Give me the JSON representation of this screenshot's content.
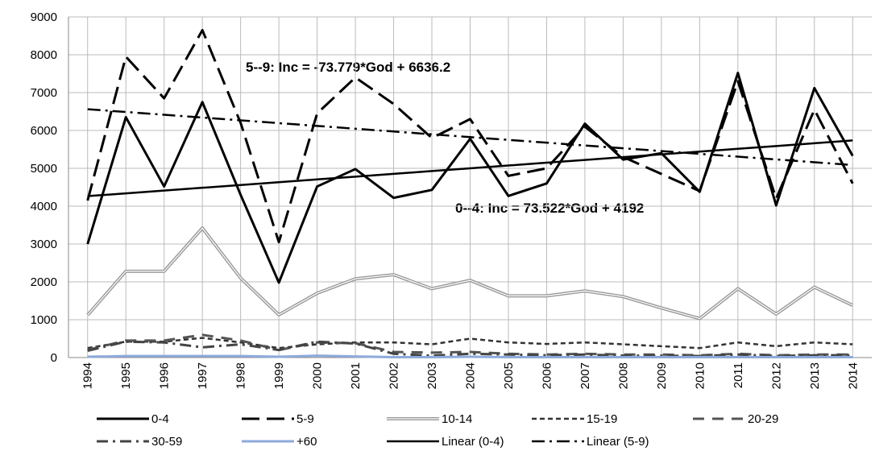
{
  "chart_data": {
    "type": "line",
    "categories": [
      "1994",
      "1995",
      "1996",
      "1997",
      "1998",
      "1999",
      "2000",
      "2001",
      "2002",
      "2003",
      "2004",
      "2005",
      "2006",
      "2007",
      "2008",
      "2009",
      "2010",
      "2011",
      "2012",
      "2013",
      "2014"
    ],
    "series": [
      {
        "name": "0-4",
        "color": "#000000",
        "values": [
          3000,
          6350,
          4520,
          6750,
          4300,
          1980,
          4520,
          4980,
          4220,
          4430,
          5780,
          4270,
          4600,
          6180,
          5230,
          5400,
          4380,
          7520,
          4020,
          7120,
          5330
        ]
      },
      {
        "name": "5-9",
        "color": "#000000",
        "values": [
          4150,
          7950,
          6850,
          8650,
          6200,
          3050,
          6450,
          7400,
          6700,
          5800,
          6300,
          4800,
          5000,
          6100,
          5300,
          4850,
          4400,
          7300,
          4200,
          6550,
          4600
        ]
      },
      {
        "name": "10-14",
        "color": "#999999",
        "values": [
          1120,
          2280,
          2280,
          3420,
          2100,
          1130,
          1700,
          2080,
          2190,
          1820,
          2040,
          1630,
          1630,
          1760,
          1610,
          1310,
          1030,
          1820,
          1150,
          1860,
          1380
        ]
      },
      {
        "name": "15-19",
        "color": "#333333",
        "values": [
          250,
          420,
          420,
          520,
          400,
          250,
          350,
          400,
          400,
          350,
          500,
          400,
          360,
          400,
          350,
          300,
          250,
          400,
          300,
          400,
          350
        ]
      },
      {
        "name": "20-29",
        "color": "#555555",
        "values": [
          200,
          450,
          450,
          600,
          450,
          200,
          400,
          380,
          150,
          130,
          150,
          100,
          80,
          100,
          80,
          80,
          60,
          100,
          60,
          80,
          80
        ]
      },
      {
        "name": "30-59",
        "color": "#444444",
        "values": [
          180,
          420,
          400,
          270,
          350,
          200,
          420,
          370,
          100,
          50,
          100,
          80,
          60,
          80,
          50,
          50,
          40,
          80,
          40,
          60,
          60
        ]
      },
      {
        "name": "+60",
        "color": "#8eaadb",
        "values": [
          20,
          40,
          40,
          40,
          40,
          20,
          50,
          30,
          10,
          10,
          20,
          10,
          10,
          10,
          10,
          10,
          10,
          10,
          10,
          10,
          10
        ]
      },
      {
        "name": "Linear (0-4)",
        "color": "#000000",
        "values": [
          4265.5,
          4339.0,
          4412.6,
          4486.1,
          4559.6,
          4633.1,
          4706.7,
          4780.2,
          4853.7,
          4927.2,
          5000.7,
          5074.3,
          5147.8,
          5221.3,
          5294.8,
          5368.4,
          5441.9,
          5515.4,
          5588.9,
          5662.4,
          5736.0
        ]
      },
      {
        "name": "Linear (5-9)",
        "color": "#000000",
        "values": [
          6562.4,
          6488.6,
          6414.9,
          6341.1,
          6267.3,
          6193.5,
          6119.7,
          6046.0,
          5972.2,
          5898.4,
          5824.6,
          5750.9,
          5677.1,
          5603.3,
          5529.5,
          5455.7,
          5382.0,
          5308.2,
          5234.4,
          5160.6,
          5086.8
        ]
      }
    ],
    "annotations": [
      "5--9:  Inc = -73.779*God + 6636.2",
      "0--4:  Inc = 73.522*God + 4192"
    ],
    "ylim": [
      0,
      9000
    ],
    "yticks": [
      0,
      1000,
      2000,
      3000,
      4000,
      5000,
      6000,
      7000,
      8000,
      9000
    ],
    "grid": true
  }
}
